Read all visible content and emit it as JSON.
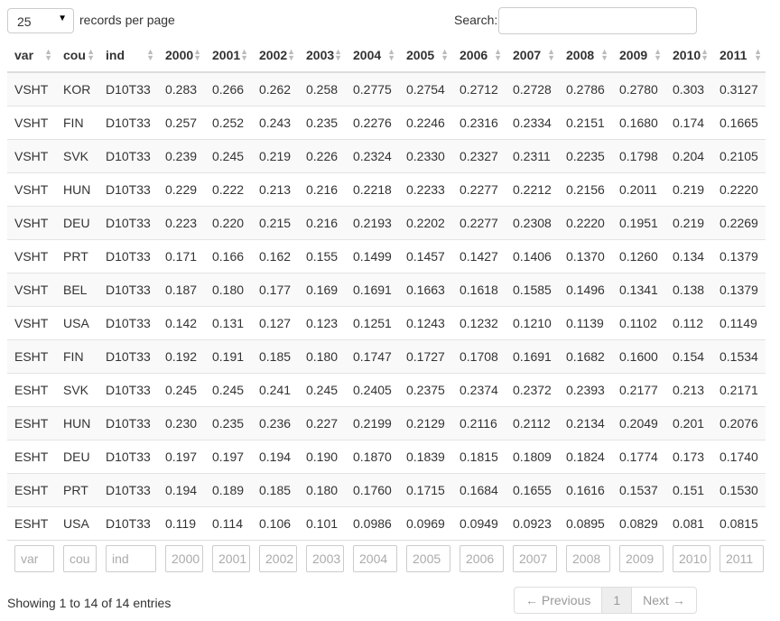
{
  "length_menu": {
    "value": "25",
    "label": "records per page"
  },
  "search": {
    "label": "Search:",
    "value": ""
  },
  "columns": [
    "var",
    "cou",
    "ind",
    "2000",
    "2001",
    "2002",
    "2003",
    "2004",
    "2005",
    "2006",
    "2007",
    "2008",
    "2009",
    "2010",
    "2011"
  ],
  "rows": [
    [
      "VSHT",
      "KOR",
      "D10T33",
      "0.283",
      "0.266",
      "0.262",
      "0.258",
      "0.2775",
      "0.2754",
      "0.2712",
      "0.2728",
      "0.2786",
      "0.2780",
      "0.303",
      "0.3127"
    ],
    [
      "VSHT",
      "FIN",
      "D10T33",
      "0.257",
      "0.252",
      "0.243",
      "0.235",
      "0.2276",
      "0.2246",
      "0.2316",
      "0.2334",
      "0.2151",
      "0.1680",
      "0.174",
      "0.1665"
    ],
    [
      "VSHT",
      "SVK",
      "D10T33",
      "0.239",
      "0.245",
      "0.219",
      "0.226",
      "0.2324",
      "0.2330",
      "0.2327",
      "0.2311",
      "0.2235",
      "0.1798",
      "0.204",
      "0.2105"
    ],
    [
      "VSHT",
      "HUN",
      "D10T33",
      "0.229",
      "0.222",
      "0.213",
      "0.216",
      "0.2218",
      "0.2233",
      "0.2277",
      "0.2212",
      "0.2156",
      "0.2011",
      "0.219",
      "0.2220"
    ],
    [
      "VSHT",
      "DEU",
      "D10T33",
      "0.223",
      "0.220",
      "0.215",
      "0.216",
      "0.2193",
      "0.2202",
      "0.2277",
      "0.2308",
      "0.2220",
      "0.1951",
      "0.219",
      "0.2269"
    ],
    [
      "VSHT",
      "PRT",
      "D10T33",
      "0.171",
      "0.166",
      "0.162",
      "0.155",
      "0.1499",
      "0.1457",
      "0.1427",
      "0.1406",
      "0.1370",
      "0.1260",
      "0.134",
      "0.1379"
    ],
    [
      "VSHT",
      "BEL",
      "D10T33",
      "0.187",
      "0.180",
      "0.177",
      "0.169",
      "0.1691",
      "0.1663",
      "0.1618",
      "0.1585",
      "0.1496",
      "0.1341",
      "0.138",
      "0.1379"
    ],
    [
      "VSHT",
      "USA",
      "D10T33",
      "0.142",
      "0.131",
      "0.127",
      "0.123",
      "0.1251",
      "0.1243",
      "0.1232",
      "0.1210",
      "0.1139",
      "0.1102",
      "0.112",
      "0.1149"
    ],
    [
      "ESHT",
      "FIN",
      "D10T33",
      "0.192",
      "0.191",
      "0.185",
      "0.180",
      "0.1747",
      "0.1727",
      "0.1708",
      "0.1691",
      "0.1682",
      "0.1600",
      "0.154",
      "0.1534"
    ],
    [
      "ESHT",
      "SVK",
      "D10T33",
      "0.245",
      "0.245",
      "0.241",
      "0.245",
      "0.2405",
      "0.2375",
      "0.2374",
      "0.2372",
      "0.2393",
      "0.2177",
      "0.213",
      "0.2171"
    ],
    [
      "ESHT",
      "HUN",
      "D10T33",
      "0.230",
      "0.235",
      "0.236",
      "0.227",
      "0.2199",
      "0.2129",
      "0.2116",
      "0.2112",
      "0.2134",
      "0.2049",
      "0.201",
      "0.2076"
    ],
    [
      "ESHT",
      "DEU",
      "D10T33",
      "0.197",
      "0.197",
      "0.194",
      "0.190",
      "0.1870",
      "0.1839",
      "0.1815",
      "0.1809",
      "0.1824",
      "0.1774",
      "0.173",
      "0.1740"
    ],
    [
      "ESHT",
      "PRT",
      "D10T33",
      "0.194",
      "0.189",
      "0.185",
      "0.180",
      "0.1760",
      "0.1715",
      "0.1684",
      "0.1655",
      "0.1616",
      "0.1537",
      "0.151",
      "0.1530"
    ],
    [
      "ESHT",
      "USA",
      "D10T33",
      "0.119",
      "0.114",
      "0.106",
      "0.101",
      "0.0986",
      "0.0969",
      "0.0949",
      "0.0923",
      "0.0895",
      "0.0829",
      "0.081",
      "0.0815"
    ]
  ],
  "filters": [
    "var",
    "cou",
    "ind",
    "2000",
    "2001",
    "2002",
    "2003",
    "2004",
    "2005",
    "2006",
    "2007",
    "2008",
    "2009",
    "2010",
    "2011"
  ],
  "info": "Showing 1 to 14 of 14 entries",
  "pagination": {
    "previous": "← Previous",
    "page": "1",
    "next": "Next →"
  }
}
